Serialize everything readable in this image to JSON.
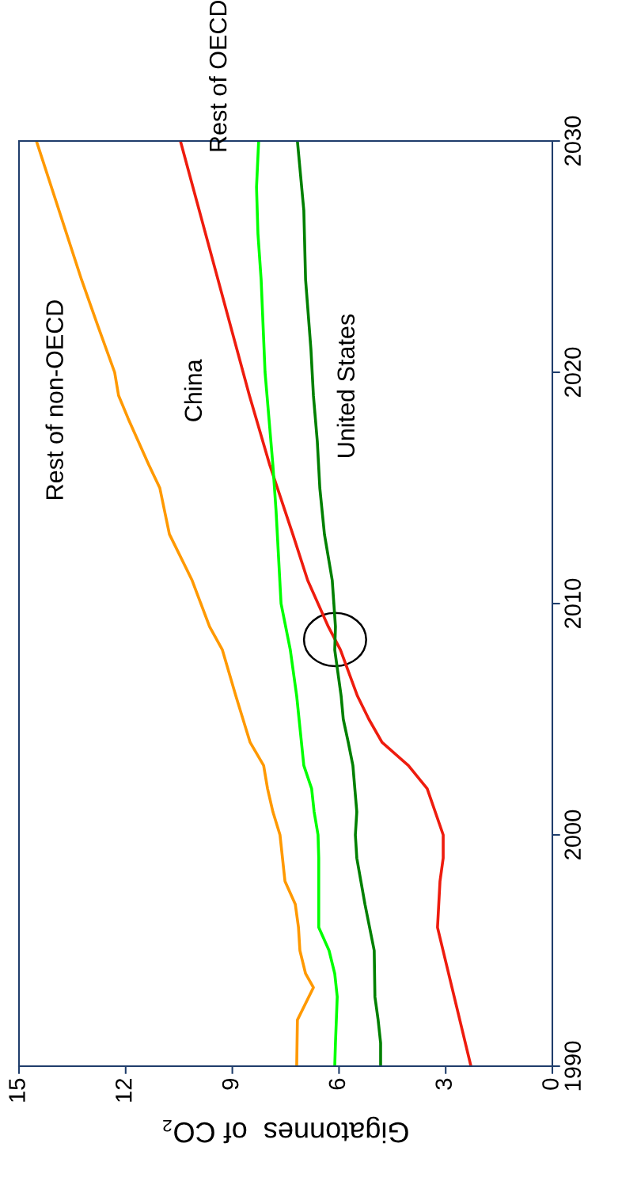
{
  "chart_data": {
    "type": "line",
    "xlabel": "Gigatonnes  of CO₂",
    "xlim": [
      15,
      0
    ],
    "xticks": [
      15,
      12,
      9,
      6,
      3,
      0
    ],
    "ylim": [
      1990,
      2030
    ],
    "yticks": [
      1990,
      2000,
      2010,
      2020,
      2030
    ],
    "grid": false,
    "legend": false,
    "marker": "none",
    "line_style": "solid",
    "series": [
      {
        "name": "Rest of non-OECD",
        "color": "#ff9900",
        "values": [
          1990,
          1992,
          1993.4,
          1994,
          1995,
          1996,
          1997,
          1998,
          2000,
          2001,
          2002,
          2003,
          2004,
          2006,
          2008,
          2009,
          2011,
          2013,
          2015,
          2016,
          2018,
          2019,
          2020,
          2022,
          2024,
          2030
        ],
        "x": [
          7.19,
          7.17,
          6.72,
          6.94,
          7.1,
          7.14,
          7.23,
          7.52,
          7.66,
          7.86,
          8.01,
          8.12,
          8.5,
          8.9,
          9.28,
          9.64,
          10.13,
          10.77,
          11.04,
          11.35,
          11.93,
          12.2,
          12.31,
          12.78,
          13.24,
          14.51
        ]
      },
      {
        "name": "China",
        "color": "#ee1c0e",
        "values": [
          1990,
          1996,
          1998,
          1999,
          2000,
          2002,
          2003,
          2004,
          2005,
          2006,
          2008,
          2009,
          2011,
          2013,
          2016,
          2019,
          2030
        ],
        "x": [
          2.29,
          3.23,
          3.16,
          3.07,
          3.07,
          3.52,
          4.05,
          4.79,
          5.16,
          5.48,
          5.96,
          6.3,
          6.88,
          7.3,
          7.95,
          8.52,
          10.46
        ]
      },
      {
        "name": "Rest of OECD",
        "color": "#00ff00",
        "values": [
          1990,
          1991,
          1993,
          1994,
          1995,
          1996,
          1999,
          2000,
          2001,
          2002,
          2003,
          2006,
          2008,
          2010,
          2012,
          2014,
          2016,
          2018,
          2020,
          2024,
          2026,
          2028,
          2030
        ],
        "x": [
          6.12,
          6.1,
          6.05,
          6.12,
          6.28,
          6.57,
          6.57,
          6.59,
          6.7,
          6.77,
          6.99,
          7.19,
          7.37,
          7.63,
          7.7,
          7.77,
          7.86,
          7.97,
          8.08,
          8.19,
          8.28,
          8.32,
          8.26
        ]
      },
      {
        "name": "United States",
        "color": "#008000",
        "values": [
          1990,
          1991,
          1992,
          1993,
          1995,
          1997,
          1999,
          2000,
          2001,
          2003,
          2004,
          2005,
          2006,
          2008,
          2009,
          2011,
          2013,
          2015,
          2017,
          2019,
          2021,
          2024,
          2027,
          2030
        ],
        "x": [
          4.83,
          4.83,
          4.9,
          4.99,
          5.01,
          5.27,
          5.5,
          5.54,
          5.5,
          5.61,
          5.74,
          5.88,
          5.94,
          6.12,
          6.1,
          6.19,
          6.41,
          6.54,
          6.61,
          6.72,
          6.79,
          6.94,
          6.99,
          7.17
        ]
      }
    ]
  }
}
